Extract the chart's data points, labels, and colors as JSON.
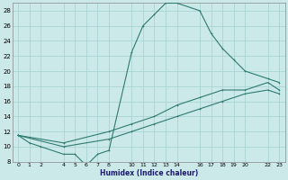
{
  "xlabel": "Humidex (Indice chaleur)",
  "bg_color": "#cce9e9",
  "grid_color": "#aad4d4",
  "line_color": "#2d7a70",
  "ylim": [
    8,
    29
  ],
  "xlim": [
    -0.5,
    23.5
  ],
  "yticks": [
    8,
    10,
    12,
    14,
    16,
    18,
    20,
    22,
    24,
    26,
    28
  ],
  "xtick_positions": [
    0,
    1,
    2,
    4,
    5,
    6,
    7,
    8,
    10,
    11,
    12,
    13,
    14,
    16,
    17,
    18,
    19,
    20,
    22,
    23
  ],
  "xtick_labels": [
    "0",
    "1",
    "2",
    "4",
    "5",
    "6",
    "7",
    "8",
    "10",
    "11",
    "12",
    "13",
    "14",
    "16",
    "17",
    "18",
    "19",
    "20",
    "22",
    "23"
  ],
  "curve1_x": [
    0,
    1,
    2,
    4,
    5,
    6,
    7,
    8,
    10,
    11,
    12,
    13,
    14,
    16,
    17,
    18,
    19,
    20,
    22,
    23
  ],
  "curve1_y": [
    11.5,
    10.5,
    10.0,
    9.0,
    9.0,
    7.5,
    9.0,
    9.5,
    22.5,
    26.0,
    27.5,
    29.0,
    29.0,
    28.0,
    25.0,
    23.0,
    21.5,
    20.0,
    19.0,
    18.5
  ],
  "curve2_x": [
    0,
    4,
    8,
    10,
    12,
    14,
    16,
    18,
    20,
    22,
    23
  ],
  "curve2_y": [
    11.5,
    10.5,
    12.0,
    13.0,
    14.0,
    15.5,
    16.5,
    17.5,
    17.5,
    18.5,
    17.5
  ],
  "curve3_x": [
    0,
    4,
    8,
    10,
    12,
    14,
    16,
    18,
    20,
    22,
    23
  ],
  "curve3_y": [
    11.5,
    10.0,
    11.0,
    12.0,
    13.0,
    14.0,
    15.0,
    16.0,
    17.0,
    17.5,
    17.0
  ]
}
